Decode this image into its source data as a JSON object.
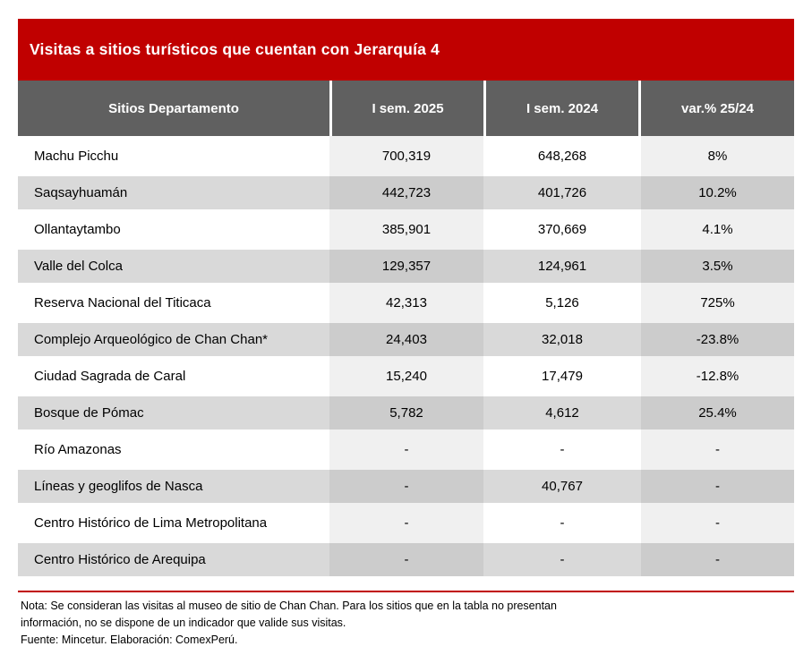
{
  "title": "Visitas a sitios turísticos que cuentan con Jerarquía 4",
  "header": {
    "columns": [
      "Sitios Departamento",
      "I sem. 2025",
      "I sem. 2024",
      "var.% 25/24"
    ]
  },
  "table": {
    "rows": [
      {
        "site": "Machu Picchu",
        "sem2025": "700,319",
        "sem2024": "648,268",
        "var_pct": "8%"
      },
      {
        "site": "Saqsayhuamán",
        "sem2025": "442,723",
        "sem2024": "401,726",
        "var_pct": "10.2%"
      },
      {
        "site": "Ollantaytambo",
        "sem2025": "385,901",
        "sem2024": "370,669",
        "var_pct": "4.1%"
      },
      {
        "site": "Valle del Colca",
        "sem2025": "129,357",
        "sem2024": "124,961",
        "var_pct": "3.5%"
      },
      {
        "site": "Reserva Nacional del Titicaca",
        "sem2025": "42,313",
        "sem2024": "5,126",
        "var_pct": "725%"
      },
      {
        "site": "Complejo Arqueológico de Chan Chan*",
        "sem2025": "24,403",
        "sem2024": "32,018",
        "var_pct": "-23.8%"
      },
      {
        "site": "Ciudad Sagrada de Caral",
        "sem2025": "15,240",
        "sem2024": "17,479",
        "var_pct": "-12.8%"
      },
      {
        "site": "Bosque de Pómac",
        "sem2025": "5,782",
        "sem2024": "4,612",
        "var_pct": "25.4%"
      },
      {
        "site": "Río Amazonas",
        "sem2025": "-",
        "sem2024": "-",
        "var_pct": "-"
      },
      {
        "site": "Líneas y geoglifos de Nasca",
        "sem2025": "-",
        "sem2024": "40,767",
        "var_pct": "-"
      },
      {
        "site": "Centro Histórico de Lima Metropolitana",
        "sem2025": "-",
        "sem2024": "-",
        "var_pct": "-"
      },
      {
        "site": "Centro Histórico de Arequipa",
        "sem2025": "-",
        "sem2024": "-",
        "var_pct": "-"
      }
    ]
  },
  "footer": {
    "note_line1": "Nota: Se consideran las visitas al museo de sitio de Chan Chan. Para los sitios que en la tabla no presentan",
    "note_line2": "información, no se dispone de un indicador que valide sus visitas.",
    "source": "Fuente: Mincetur. Elaboración: ComexPerú."
  },
  "colors": {
    "accent_red": "#C00000",
    "header_gray": "#606060",
    "band_gray": "#D9D9D9",
    "column_tint": "rgba(0,0,0,0.057)"
  },
  "chart_data": {
    "type": "table",
    "title": "Visitas a sitios turísticos que cuentan con Jerarquía 4",
    "columns": [
      "Sitios Departamento",
      "I sem. 2025",
      "I sem. 2024",
      "var.% 25/24"
    ],
    "rows": [
      [
        "Machu Picchu",
        "700,319",
        "648,268",
        "8%"
      ],
      [
        "Saqsayhuamán",
        "442,723",
        "401,726",
        "10.2%"
      ],
      [
        "Ollantaytambo",
        "385,901",
        "370,669",
        "4.1%"
      ],
      [
        "Valle del Colca",
        "129,357",
        "124,961",
        "3.5%"
      ],
      [
        "Reserva Nacional del Titicaca",
        "42,313",
        "5,126",
        "725%"
      ],
      [
        "Complejo Arqueológico de Chan Chan*",
        "24,403",
        "32,018",
        "-23.8%"
      ],
      [
        "Ciudad Sagrada de Caral",
        "15,240",
        "17,479",
        "-12.8%"
      ],
      [
        "Bosque de Pómac",
        "5,782",
        "4,612",
        "25.4%"
      ],
      [
        "Río Amazonas",
        "-",
        "-",
        "-"
      ],
      [
        "Líneas y geoglifos de Nasca",
        "-",
        "40,767",
        "-"
      ],
      [
        "Centro Histórico de Lima Metropolitana",
        "-",
        "-",
        "-"
      ],
      [
        "Centro Histórico de Arequipa",
        "-",
        "-",
        "-"
      ]
    ],
    "notes": "Nota: Se consideran las visitas al museo de sitio de Chan Chan. Para los sitios que en la tabla no presentan información, no se dispone de un indicador que valide sus visitas. Fuente: Mincetur. Elaboración: ComexPerú."
  }
}
